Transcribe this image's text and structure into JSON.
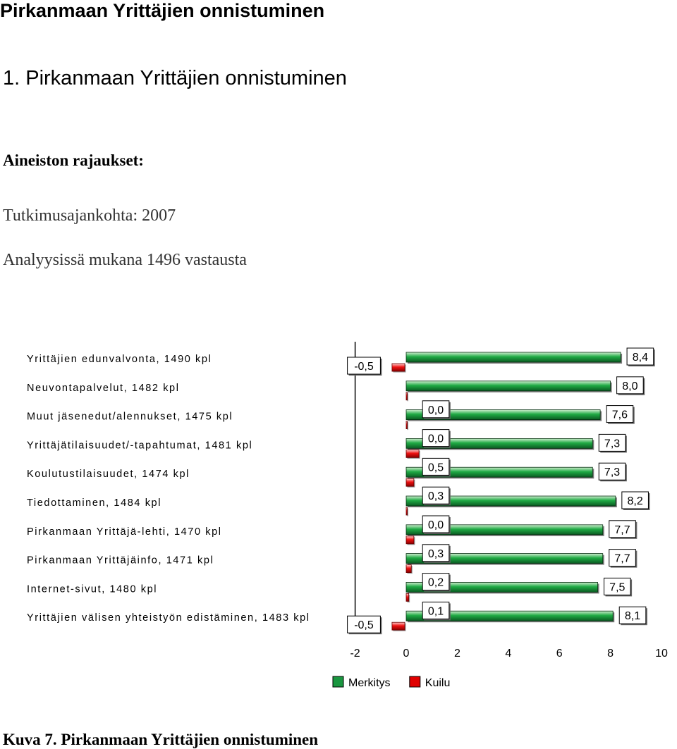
{
  "header": {
    "title": "Pirkanmaan Yrittäjien onnistuminen"
  },
  "section": {
    "title": "1. Pirkanmaan Yrittäjien onnistuminen"
  },
  "filters": {
    "heading": "Aineiston rajaukset:",
    "lines": [
      "Tutkimusajankohta: 2007",
      "Analyysissä mukana 1496 vastausta"
    ]
  },
  "chart_data": {
    "type": "bar",
    "orientation": "horizontal",
    "categories": [
      "Yrittäjien edunvalvonta, 1490 kpl",
      "Neuvontapalvelut, 1482 kpl",
      "Muut jäsenedut/alennukset, 1475 kpl",
      "Yrittäjätilaisuudet/-tapahtumat, 1481 kpl",
      "Koulutustilaisuudet, 1474 kpl",
      "Tiedottaminen, 1484 kpl",
      "Pirkanmaan Yrittäjä-lehti, 1470 kpl",
      "Pirkanmaan Yrittäjäinfo, 1471 kpl",
      "Internet-sivut, 1480 kpl",
      "Yrittäjien välisen yhteistyön edistäminen, 1483 kpl"
    ],
    "series": [
      {
        "name": "Merkitys",
        "color": "#1a9640",
        "values": [
          8.4,
          8.0,
          7.6,
          7.3,
          7.3,
          8.2,
          7.7,
          7.7,
          7.5,
          8.1
        ],
        "labels": [
          "8,4",
          "8,0",
          "7,6",
          "7,3",
          "7,3",
          "8,2",
          "7,7",
          "7,7",
          "7,5",
          "8,1"
        ]
      },
      {
        "name": "Kuilu",
        "color": "#e00000",
        "values": [
          -0.5,
          0.0,
          0.0,
          0.5,
          0.3,
          0.0,
          0.3,
          0.2,
          0.1,
          -0.5
        ],
        "labels": [
          "-0,5",
          "0,0",
          "0,0",
          "0,5",
          "0,3",
          "0,0",
          "0,3",
          "0,2",
          "0,1",
          "-0,5"
        ]
      }
    ],
    "xlim": [
      -2,
      10
    ],
    "xticks": [
      "-2",
      "0",
      "2",
      "4",
      "6",
      "8",
      "10"
    ],
    "legend": "bottom"
  },
  "caption": "Kuva 7. Pirkanmaan Yrittäjien onnistuminen"
}
